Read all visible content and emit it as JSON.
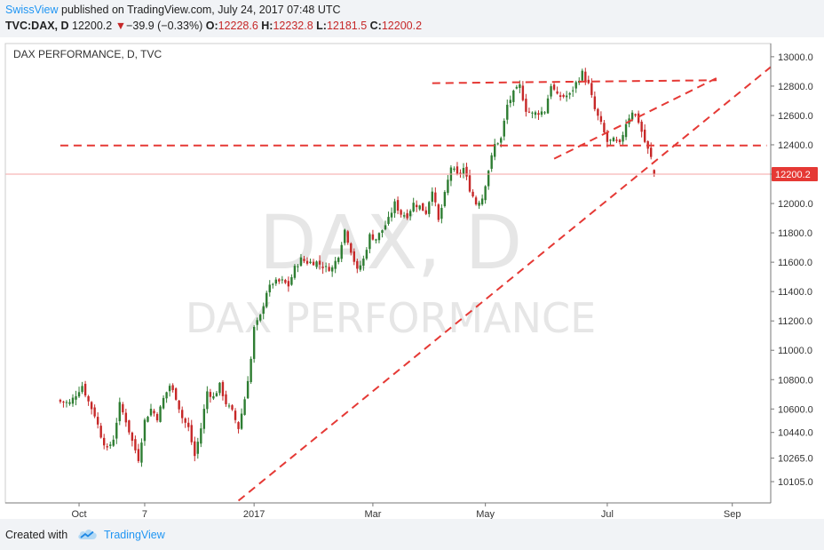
{
  "header": {
    "brand": "SwissView",
    "published_text": " published on TradingView.com, July 24, 2017 07:48 UTC",
    "symbol": "TVC:DAX, D",
    "last_price": "12200.2",
    "change_arrow": "▼",
    "change": "−39.9 (−0.33%)",
    "open_label": "O:",
    "open_value": "12228.6",
    "high_label": "H:",
    "high_value": "12232.8",
    "low_label": "L:",
    "low_value": "12181.5",
    "close_label": "C:",
    "close_value": "12200.2"
  },
  "footer": {
    "created_with": "Created with",
    "tradingview": "TradingView"
  },
  "colors": {
    "up": "#2e7d32",
    "down": "#c62828",
    "trendline": "#e53935",
    "price_label_bg": "#e53935",
    "brand": "#2196f3"
  },
  "chart_data": {
    "type": "candlestick",
    "title": "DAX PERFORMANCE, D, TVC",
    "watermark_symbol": "DAX, D",
    "watermark_name": "DAX PERFORMANCE",
    "x_tick_labels": [
      "Oct",
      "7",
      "2017",
      "Mar",
      "May",
      "Jul",
      "Sep"
    ],
    "y_ticks": [
      10105,
      10265,
      10440,
      10600,
      10800,
      11000,
      11200,
      11400,
      11600,
      11800,
      12000,
      12200,
      12400,
      12600,
      12800,
      13000
    ],
    "y_tick_labels": [
      "10105.0",
      "10265.0",
      "10440.0",
      "10600.0",
      "10800.0",
      "11000.0",
      "11200.0",
      "11400.0",
      "11600.0",
      "11800.0",
      "12000.0",
      "12200.0",
      "12400.0",
      "12600.0",
      "12800.0",
      "13000.0"
    ],
    "ylim": [
      9960,
      13090
    ],
    "last_price": 12200.2,
    "last_price_label": "12200.2",
    "trend_lines": [
      {
        "style": "dashed",
        "from": [
          -29,
          12395
        ],
        "to": [
          197,
          12395
        ]
      },
      {
        "style": "dashed",
        "from": [
          90,
          12820
        ],
        "to": [
          181,
          12840
        ]
      },
      {
        "style": "dashed",
        "from": [
          28,
          9975
        ],
        "to": [
          231,
          12930
        ]
      },
      {
        "style": "dashed",
        "from": [
          129,
          12305
        ],
        "to": [
          181,
          12855
        ]
      }
    ],
    "close_anchors": [
      [
        -29,
        10650
      ],
      [
        -26,
        10640
      ],
      [
        -24,
        10700
      ],
      [
        -22,
        10760
      ],
      [
        -20,
        10650
      ],
      [
        -18,
        10560
      ],
      [
        -16,
        10420
      ],
      [
        -14,
        10320
      ],
      [
        -12,
        10400
      ],
      [
        -10,
        10630
      ],
      [
        -8,
        10520
      ],
      [
        -6,
        10380
      ],
      [
        -4,
        10260
      ],
      [
        -2,
        10520
      ],
      [
        0,
        10600
      ],
      [
        2,
        10540
      ],
      [
        4,
        10670
      ],
      [
        6,
        10760
      ],
      [
        8,
        10680
      ],
      [
        10,
        10540
      ],
      [
        12,
        10470
      ],
      [
        14,
        10280
      ],
      [
        16,
        10470
      ],
      [
        18,
        10720
      ],
      [
        20,
        10680
      ],
      [
        22,
        10760
      ],
      [
        24,
        10640
      ],
      [
        26,
        10580
      ],
      [
        28,
        10470
      ],
      [
        30,
        10670
      ],
      [
        32,
        10940
      ],
      [
        33,
        11150
      ],
      [
        35,
        11230
      ],
      [
        37,
        11400
      ],
      [
        39,
        11460
      ],
      [
        42,
        11470
      ],
      [
        44,
        11440
      ],
      [
        46,
        11560
      ],
      [
        48,
        11620
      ],
      [
        50,
        11600
      ],
      [
        53,
        11600
      ],
      [
        56,
        11560
      ],
      [
        58,
        11560
      ],
      [
        60,
        11650
      ],
      [
        62,
        11820
      ],
      [
        64,
        11680
      ],
      [
        66,
        11540
      ],
      [
        68,
        11620
      ],
      [
        70,
        11780
      ],
      [
        72,
        11760
      ],
      [
        74,
        11820
      ],
      [
        76,
        11890
      ],
      [
        78,
        12000
      ],
      [
        80,
        11930
      ],
      [
        82,
        11920
      ],
      [
        84,
        12000
      ],
      [
        86,
        11980
      ],
      [
        88,
        11940
      ],
      [
        90,
        12100
      ],
      [
        92,
        11880
      ],
      [
        94,
        12060
      ],
      [
        96,
        12250
      ],
      [
        98,
        12190
      ],
      [
        100,
        12240
      ],
      [
        102,
        12100
      ],
      [
        104,
        12000
      ],
      [
        106,
        12040
      ],
      [
        108,
        12230
      ],
      [
        110,
        12400
      ],
      [
        112,
        12440
      ],
      [
        114,
        12670
      ],
      [
        116,
        12750
      ],
      [
        118,
        12800
      ],
      [
        120,
        12640
      ],
      [
        122,
        12610
      ],
      [
        124,
        12620
      ],
      [
        126,
        12630
      ],
      [
        128,
        12810
      ],
      [
        130,
        12730
      ],
      [
        132,
        12730
      ],
      [
        134,
        12740
      ],
      [
        136,
        12820
      ],
      [
        138,
        12890
      ],
      [
        140,
        12810
      ],
      [
        142,
        12640
      ],
      [
        144,
        12540
      ],
      [
        146,
        12420
      ],
      [
        148,
        12430
      ],
      [
        150,
        12400
      ],
      [
        152,
        12550
      ],
      [
        154,
        12630
      ],
      [
        156,
        12560
      ],
      [
        158,
        12420
      ],
      [
        160,
        12310
      ],
      [
        161,
        12200
      ]
    ]
  }
}
